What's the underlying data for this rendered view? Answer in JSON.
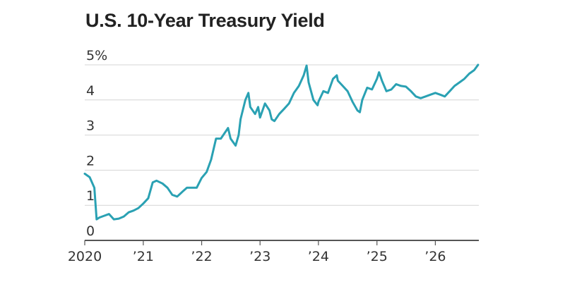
{
  "chart_data": {
    "type": "line",
    "title": "U.S. 10-Year Treasury Yield",
    "xlabel": "",
    "ylabel": "",
    "xlim": [
      "2020-01-01",
      "2026-09-30"
    ],
    "ylim": [
      0,
      5
    ],
    "ytick_labels": [
      "0",
      "1",
      "2",
      "3",
      "4",
      "5%"
    ],
    "xtick_labels": [
      "2020",
      "’21",
      "’22",
      "’23",
      "’24",
      "’25",
      "’26"
    ],
    "grid": true,
    "color": "#2aa1b3",
    "series": [
      {
        "x": [
          "2020-01-01",
          "2020-02-01",
          "2020-03-01",
          "2020-03-15",
          "2020-04-01",
          "2020-05-01",
          "2020-06-01",
          "2020-07-01",
          "2020-08-01",
          "2020-09-01",
          "2020-10-01",
          "2020-11-01",
          "2020-12-01",
          "2021-01-01",
          "2021-02-01",
          "2021-03-01",
          "2021-03-25",
          "2021-05-01",
          "2021-06-01",
          "2021-07-01",
          "2021-08-01",
          "2021-09-01",
          "2021-10-01",
          "2021-11-01",
          "2021-12-01",
          "2022-01-01",
          "2022-02-01",
          "2022-03-01",
          "2022-04-01",
          "2022-05-01",
          "2022-06-15",
          "2022-07-01",
          "2022-08-01",
          "2022-08-20",
          "2022-09-01",
          "2022-10-01",
          "2022-10-20",
          "2022-11-01",
          "2022-12-01",
          "2022-12-20",
          "2023-01-01",
          "2023-02-01",
          "2023-03-01",
          "2023-03-15",
          "2023-04-01",
          "2023-05-01",
          "2023-06-01",
          "2023-07-01",
          "2023-08-01",
          "2023-09-01",
          "2023-10-01",
          "2023-10-19",
          "2023-11-01",
          "2023-12-01",
          "2023-12-27",
          "2024-01-01",
          "2024-02-01",
          "2024-03-01",
          "2024-04-01",
          "2024-04-25",
          "2024-05-01",
          "2024-06-01",
          "2024-07-01",
          "2024-08-01",
          "2024-09-01",
          "2024-09-16",
          "2024-10-01",
          "2024-11-01",
          "2024-12-01",
          "2025-01-01",
          "2025-01-14",
          "2025-02-01",
          "2025-03-01",
          "2025-04-01",
          "2025-05-01",
          "2025-06-01",
          "2025-07-01",
          "2025-08-01",
          "2025-09-01",
          "2025-10-01",
          "2025-11-01",
          "2025-12-01",
          "2026-01-01",
          "2026-02-01",
          "2026-03-01",
          "2026-04-01",
          "2026-05-01",
          "2026-06-01",
          "2026-07-01",
          "2026-08-01",
          "2026-09-01",
          "2026-09-25"
        ],
        "y": [
          1.9,
          1.8,
          1.5,
          0.6,
          0.65,
          0.7,
          0.75,
          0.6,
          0.62,
          0.68,
          0.8,
          0.85,
          0.92,
          1.05,
          1.2,
          1.65,
          1.7,
          1.62,
          1.5,
          1.3,
          1.25,
          1.38,
          1.5,
          1.5,
          1.5,
          1.78,
          1.95,
          2.3,
          2.9,
          2.9,
          3.2,
          2.9,
          2.7,
          3.0,
          3.45,
          4.0,
          4.2,
          3.8,
          3.6,
          3.8,
          3.5,
          3.9,
          3.7,
          3.45,
          3.4,
          3.6,
          3.75,
          3.9,
          4.2,
          4.4,
          4.7,
          4.98,
          4.5,
          4.0,
          3.85,
          3.95,
          4.25,
          4.2,
          4.6,
          4.7,
          4.55,
          4.4,
          4.25,
          3.95,
          3.7,
          3.65,
          4.0,
          4.35,
          4.3,
          4.6,
          4.79,
          4.55,
          4.25,
          4.3,
          4.45,
          4.4,
          4.38,
          4.25,
          4.1,
          4.05,
          4.1,
          4.15,
          4.2,
          4.15,
          4.1,
          4.25,
          4.4,
          4.5,
          4.6,
          4.75,
          4.85,
          5.0
        ]
      }
    ]
  }
}
